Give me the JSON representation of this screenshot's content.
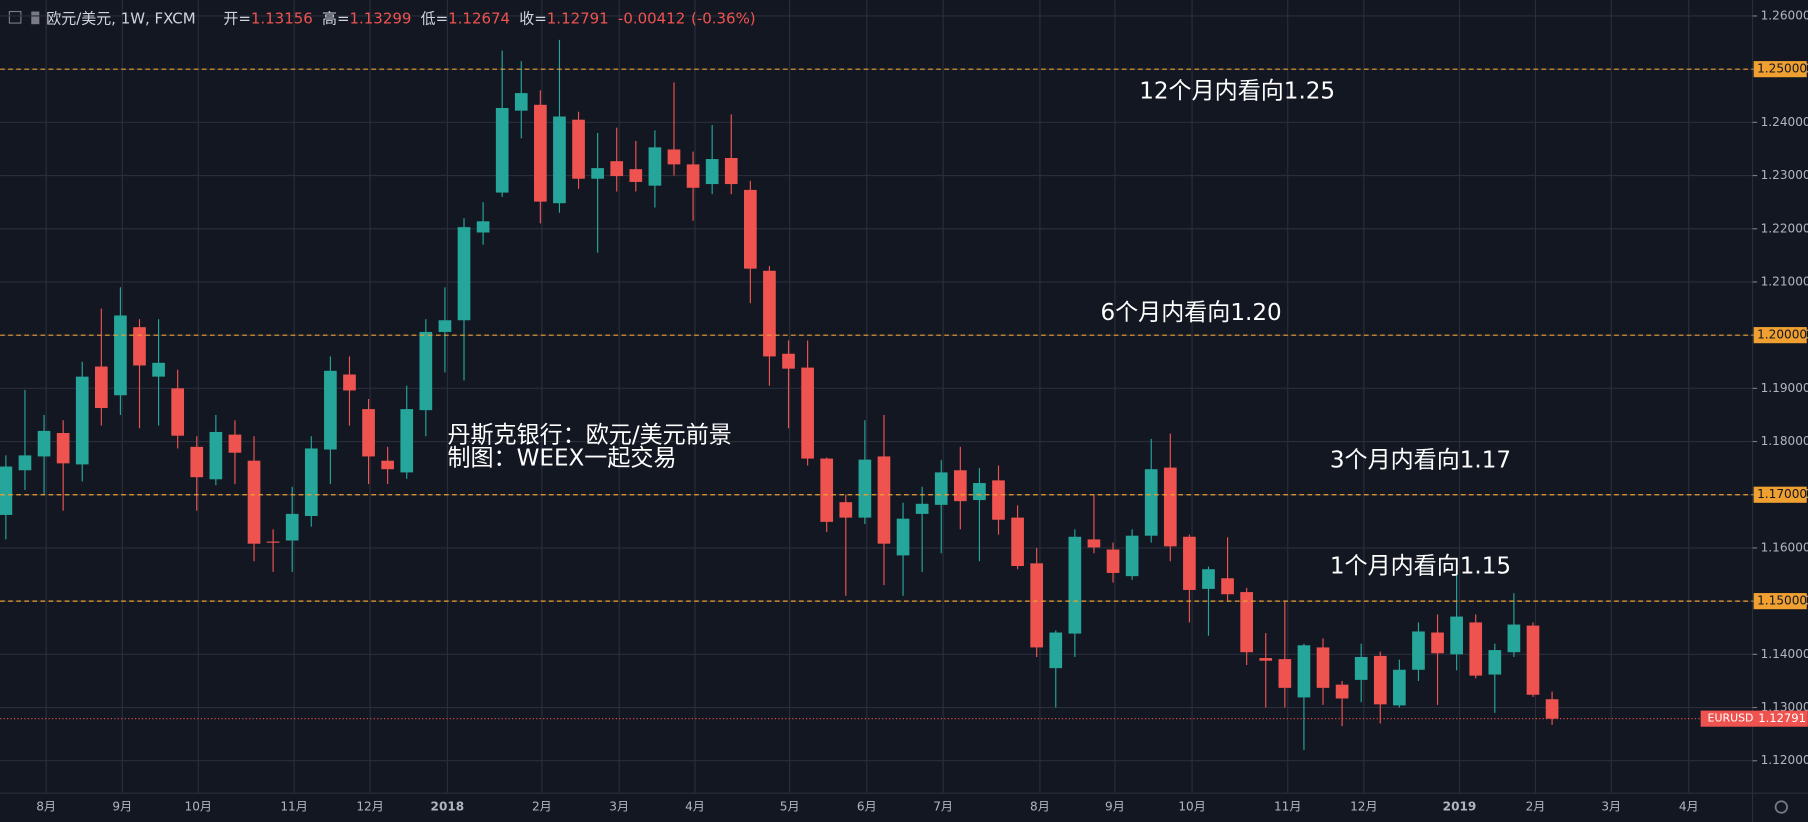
{
  "chart_data": {
    "type": "candlestick",
    "header": {
      "symbol": "欧元/美元, 1W, FXCM",
      "open_label": "开=",
      "high_label": "高=",
      "low_label": "低=",
      "close_label": "收=",
      "change": -0.00412,
      "change_pct": "(-0.36%)"
    },
    "up_color": "#26a69a",
    "down_color": "#ef5350",
    "level_color": "#f0a030",
    "last_color": "#ef5350",
    "grid": true,
    "candles": [
      {
        "open": 1.1662,
        "high": 1.1774,
        "low": 1.1616,
        "close": 1.1753
      },
      {
        "open": 1.1746,
        "high": 1.1897,
        "low": 1.1709,
        "close": 1.1774
      },
      {
        "open": 1.1772,
        "high": 1.185,
        "low": 1.17,
        "close": 1.182
      },
      {
        "open": 1.1816,
        "high": 1.184,
        "low": 1.167,
        "close": 1.1759
      },
      {
        "open": 1.1757,
        "high": 1.195,
        "low": 1.1725,
        "close": 1.1922
      },
      {
        "open": 1.1941,
        "high": 1.205,
        "low": 1.183,
        "close": 1.1863
      },
      {
        "open": 1.1887,
        "high": 1.209,
        "low": 1.185,
        "close": 1.2037
      },
      {
        "open": 1.2015,
        "high": 1.203,
        "low": 1.1825,
        "close": 1.1943
      },
      {
        "open": 1.1922,
        "high": 1.203,
        "low": 1.183,
        "close": 1.1948
      },
      {
        "open": 1.19,
        "high": 1.1935,
        "low": 1.1787,
        "close": 1.1811
      },
      {
        "open": 1.179,
        "high": 1.181,
        "low": 1.167,
        "close": 1.1733
      },
      {
        "open": 1.1729,
        "high": 1.185,
        "low": 1.1718,
        "close": 1.1818
      },
      {
        "open": 1.1813,
        "high": 1.184,
        "low": 1.172,
        "close": 1.1779
      },
      {
        "open": 1.1764,
        "high": 1.181,
        "low": 1.1575,
        "close": 1.1608
      },
      {
        "open": 1.1612,
        "high": 1.1635,
        "low": 1.1555,
        "close": 1.161
      },
      {
        "open": 1.1614,
        "high": 1.1715,
        "low": 1.1555,
        "close": 1.1664
      },
      {
        "open": 1.166,
        "high": 1.181,
        "low": 1.164,
        "close": 1.1787
      },
      {
        "open": 1.1785,
        "high": 1.196,
        "low": 1.172,
        "close": 1.1933
      },
      {
        "open": 1.1926,
        "high": 1.196,
        "low": 1.183,
        "close": 1.1896
      },
      {
        "open": 1.1861,
        "high": 1.188,
        "low": 1.172,
        "close": 1.1772
      },
      {
        "open": 1.1764,
        "high": 1.179,
        "low": 1.172,
        "close": 1.1748
      },
      {
        "open": 1.1742,
        "high": 1.1905,
        "low": 1.173,
        "close": 1.1861
      },
      {
        "open": 1.1859,
        "high": 1.203,
        "low": 1.181,
        "close": 1.2006
      },
      {
        "open": 1.2006,
        "high": 1.209,
        "low": 1.193,
        "close": 1.2028
      },
      {
        "open": 1.2028,
        "high": 1.222,
        "low": 1.1915,
        "close": 1.2203
      },
      {
        "open": 1.2193,
        "high": 1.225,
        "low": 1.217,
        "close": 1.2214
      },
      {
        "open": 1.2268,
        "high": 1.2535,
        "low": 1.226,
        "close": 1.2427
      },
      {
        "open": 1.2422,
        "high": 1.2515,
        "low": 1.237,
        "close": 1.2455
      },
      {
        "open": 1.2433,
        "high": 1.246,
        "low": 1.221,
        "close": 1.2251
      },
      {
        "open": 1.2248,
        "high": 1.2555,
        "low": 1.223,
        "close": 1.2411
      },
      {
        "open": 1.2405,
        "high": 1.242,
        "low": 1.2275,
        "close": 1.2294
      },
      {
        "open": 1.2294,
        "high": 1.238,
        "low": 1.2155,
        "close": 1.2314
      },
      {
        "open": 1.2327,
        "high": 1.239,
        "low": 1.227,
        "close": 1.2299
      },
      {
        "open": 1.2312,
        "high": 1.2365,
        "low": 1.227,
        "close": 1.2288
      },
      {
        "open": 1.2281,
        "high": 1.2385,
        "low": 1.224,
        "close": 1.2353
      },
      {
        "open": 1.2349,
        "high": 1.2475,
        "low": 1.23,
        "close": 1.2321
      },
      {
        "open": 1.2321,
        "high": 1.2345,
        "low": 1.2215,
        "close": 1.2277
      },
      {
        "open": 1.2284,
        "high": 1.2395,
        "low": 1.2265,
        "close": 1.2331
      },
      {
        "open": 1.2333,
        "high": 1.2415,
        "low": 1.2265,
        "close": 1.2284
      },
      {
        "open": 1.2273,
        "high": 1.229,
        "low": 1.206,
        "close": 1.2125
      },
      {
        "open": 1.2121,
        "high": 1.213,
        "low": 1.1905,
        "close": 1.196
      },
      {
        "open": 1.1965,
        "high": 1.199,
        "low": 1.1825,
        "close": 1.1937
      },
      {
        "open": 1.1939,
        "high": 1.199,
        "low": 1.1755,
        "close": 1.1768
      },
      {
        "open": 1.1768,
        "high": 1.177,
        "low": 1.163,
        "close": 1.1649
      },
      {
        "open": 1.1686,
        "high": 1.17,
        "low": 1.151,
        "close": 1.1657
      },
      {
        "open": 1.1657,
        "high": 1.184,
        "low": 1.1645,
        "close": 1.1766
      },
      {
        "open": 1.1772,
        "high": 1.185,
        "low": 1.153,
        "close": 1.1608
      },
      {
        "open": 1.1586,
        "high": 1.1685,
        "low": 1.151,
        "close": 1.1655
      },
      {
        "open": 1.1664,
        "high": 1.1715,
        "low": 1.1555,
        "close": 1.1683
      },
      {
        "open": 1.1681,
        "high": 1.1765,
        "low": 1.159,
        "close": 1.1742
      },
      {
        "open": 1.1746,
        "high": 1.179,
        "low": 1.1635,
        "close": 1.1688
      },
      {
        "open": 1.169,
        "high": 1.175,
        "low": 1.1575,
        "close": 1.1722
      },
      {
        "open": 1.1727,
        "high": 1.1755,
        "low": 1.1625,
        "close": 1.1653
      },
      {
        "open": 1.1657,
        "high": 1.168,
        "low": 1.156,
        "close": 1.1566
      },
      {
        "open": 1.1571,
        "high": 1.16,
        "low": 1.1395,
        "close": 1.1413
      },
      {
        "open": 1.1374,
        "high": 1.1445,
        "low": 1.13,
        "close": 1.1441
      },
      {
        "open": 1.1439,
        "high": 1.1635,
        "low": 1.1395,
        "close": 1.1621
      },
      {
        "open": 1.1616,
        "high": 1.17,
        "low": 1.159,
        "close": 1.1601
      },
      {
        "open": 1.1597,
        "high": 1.161,
        "low": 1.1535,
        "close": 1.1553
      },
      {
        "open": 1.1547,
        "high": 1.1635,
        "low": 1.154,
        "close": 1.1623
      },
      {
        "open": 1.1623,
        "high": 1.1805,
        "low": 1.161,
        "close": 1.1748
      },
      {
        "open": 1.1751,
        "high": 1.1815,
        "low": 1.1575,
        "close": 1.1603
      },
      {
        "open": 1.1621,
        "high": 1.1625,
        "low": 1.146,
        "close": 1.1521
      },
      {
        "open": 1.1523,
        "high": 1.1565,
        "low": 1.1435,
        "close": 1.156
      },
      {
        "open": 1.1543,
        "high": 1.162,
        "low": 1.15,
        "close": 1.1513
      },
      {
        "open": 1.1517,
        "high": 1.1525,
        "low": 1.138,
        "close": 1.1404
      },
      {
        "open": 1.1393,
        "high": 1.144,
        "low": 1.13,
        "close": 1.1388
      },
      {
        "open": 1.1391,
        "high": 1.15,
        "low": 1.13,
        "close": 1.1337
      },
      {
        "open": 1.1319,
        "high": 1.142,
        "low": 1.122,
        "close": 1.1417
      },
      {
        "open": 1.1413,
        "high": 1.143,
        "low": 1.1305,
        "close": 1.1337
      },
      {
        "open": 1.1343,
        "high": 1.135,
        "low": 1.1265,
        "close": 1.1317
      },
      {
        "open": 1.1352,
        "high": 1.142,
        "low": 1.131,
        "close": 1.1395
      },
      {
        "open": 1.1397,
        "high": 1.1405,
        "low": 1.127,
        "close": 1.1306
      },
      {
        "open": 1.1304,
        "high": 1.139,
        "low": 1.13,
        "close": 1.1371
      },
      {
        "open": 1.1371,
        "high": 1.146,
        "low": 1.135,
        "close": 1.1443
      },
      {
        "open": 1.1441,
        "high": 1.1475,
        "low": 1.1305,
        "close": 1.1402
      },
      {
        "open": 1.14,
        "high": 1.155,
        "low": 1.137,
        "close": 1.1471
      },
      {
        "open": 1.146,
        "high": 1.1475,
        "low": 1.1355,
        "close": 1.136
      },
      {
        "open": 1.1362,
        "high": 1.142,
        "low": 1.129,
        "close": 1.1408
      },
      {
        "open": 1.1404,
        "high": 1.1515,
        "low": 1.1395,
        "close": 1.1456
      },
      {
        "open": 1.1454,
        "high": 1.146,
        "low": 1.132,
        "close": 1.1324
      },
      {
        "open": 1.13156,
        "high": 1.13299,
        "low": 1.12674,
        "close": 1.12791
      }
    ],
    "xlim": [
      -0.3,
      91.5
    ],
    "xticks": [
      {
        "value": 2.11,
        "label": "8月"
      },
      {
        "value": 6.1,
        "label": "9月"
      },
      {
        "value": 10.08,
        "label": "10月"
      },
      {
        "value": 15.1,
        "label": "11月"
      },
      {
        "value": 19.08,
        "label": "12月"
      },
      {
        "value": 23.13,
        "label": "2018"
      },
      {
        "value": 28.08,
        "label": "2月"
      },
      {
        "value": 32.13,
        "label": "3月"
      },
      {
        "value": 36.1,
        "label": "4月"
      },
      {
        "value": 41.06,
        "label": "5月"
      },
      {
        "value": 45.1,
        "label": "6月"
      },
      {
        "value": 49.1,
        "label": "7月"
      },
      {
        "value": 54.17,
        "label": "8月"
      },
      {
        "value": 58.1,
        "label": "9月"
      },
      {
        "value": 62.14,
        "label": "10月"
      },
      {
        "value": 67.15,
        "label": "11月"
      },
      {
        "value": 71.14,
        "label": "12月"
      },
      {
        "value": 76.15,
        "label": "2019"
      },
      {
        "value": 80.13,
        "label": "2月"
      },
      {
        "value": 84.1,
        "label": "3月"
      },
      {
        "value": 88.16,
        "label": "4月"
      }
    ],
    "ylim": [
      1.1139,
      1.263
    ],
    "yticks": [
      {
        "value": 1.12,
        "label": "1.12000"
      },
      {
        "value": 1.13,
        "label": "1.13000"
      },
      {
        "value": 1.14,
        "label": "1.14000"
      },
      {
        "value": 1.15,
        "label": "1.15000"
      },
      {
        "value": 1.16,
        "label": "1.16000"
      },
      {
        "value": 1.17,
        "label": "1.17000"
      },
      {
        "value": 1.18,
        "label": "1.18000"
      },
      {
        "value": 1.19,
        "label": "1.19000"
      },
      {
        "value": 1.2,
        "label": "1.20000"
      },
      {
        "value": 1.21,
        "label": "1.21000"
      },
      {
        "value": 1.22,
        "label": "1.22000"
      },
      {
        "value": 1.23,
        "label": "1.23000"
      },
      {
        "value": 1.24,
        "label": "1.24000"
      },
      {
        "value": 1.25,
        "label": "1.25000"
      },
      {
        "value": 1.26,
        "label": "1.26000"
      }
    ],
    "levels": [
      {
        "value": 1.25,
        "label": "1.25000",
        "note": "12个月内看向1.25"
      },
      {
        "value": 1.2,
        "label": "1.20000",
        "note": "6个月内看向1.20"
      },
      {
        "value": 1.17,
        "label": "1.17000",
        "note": "3个月内看向1.17"
      },
      {
        "value": 1.15,
        "label": "1.15000",
        "note": "1个月内看向1.15"
      }
    ],
    "last_tag": "EURUSD",
    "watermark": [
      "丹斯克银行：欧元/美元前景",
      "制图：WEEX一起交易"
    ]
  }
}
